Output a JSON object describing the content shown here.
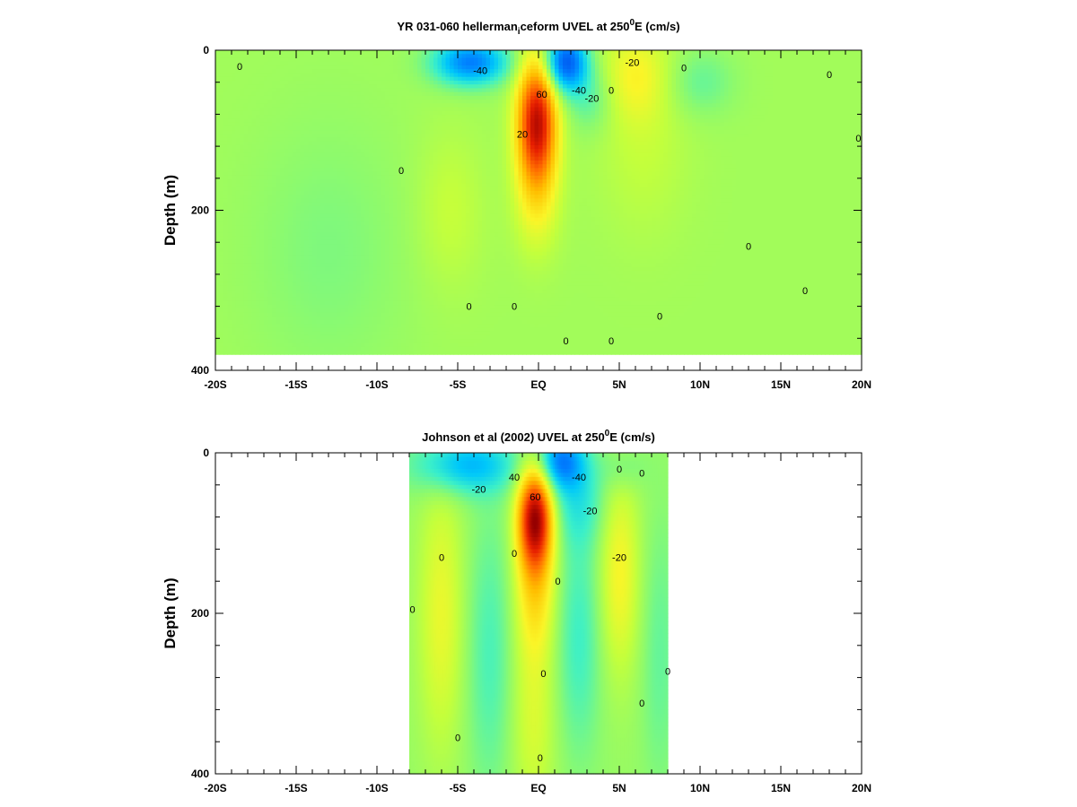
{
  "chart_data": [
    {
      "type": "heatmap",
      "title_main": "YR 031-060 hellerman",
      "title_sub": "i",
      "title_after_sub": "ceform UVEL at 250",
      "title_sup": "0",
      "title_end": "E (cm/s)",
      "ylabel": "Depth (m)",
      "xlabel": "",
      "x_ticks": [
        {
          "value": -20,
          "label": "-20S"
        },
        {
          "value": -15,
          "label": "-15S"
        },
        {
          "value": -10,
          "label": "-10S"
        },
        {
          "value": -5,
          "label": "-5S"
        },
        {
          "value": 0,
          "label": "EQ"
        },
        {
          "value": 5,
          "label": "5N"
        },
        {
          "value": 10,
          "label": "10N"
        },
        {
          "value": 15,
          "label": "15N"
        },
        {
          "value": 20,
          "label": "20N"
        }
      ],
      "y_ticks": [
        {
          "value": 0,
          "label": "0"
        },
        {
          "value": 200,
          "label": "200"
        },
        {
          "value": 400,
          "label": "400"
        }
      ],
      "xlim": [
        -20,
        20
      ],
      "ylim": [
        0,
        400
      ],
      "y_inverted": true,
      "data_region": {
        "x": [
          -20,
          20
        ],
        "depth": [
          0,
          380
        ]
      },
      "units": "cm/s",
      "contour_labels": [
        {
          "text": "0",
          "x": -18.5,
          "depth": 20
        },
        {
          "text": "-40",
          "x": -3.6,
          "depth": 25
        },
        {
          "text": "60",
          "x": 0.2,
          "depth": 55
        },
        {
          "text": "-40",
          "x": 2.5,
          "depth": 50
        },
        {
          "text": "-20",
          "x": 3.3,
          "depth": 60
        },
        {
          "text": "0",
          "x": 4.5,
          "depth": 50
        },
        {
          "text": "-20",
          "x": 5.8,
          "depth": 15
        },
        {
          "text": "0",
          "x": 9.0,
          "depth": 22
        },
        {
          "text": "20",
          "x": -1.0,
          "depth": 105
        },
        {
          "text": "0",
          "x": -8.5,
          "depth": 150
        },
        {
          "text": "0",
          "x": 18.0,
          "depth": 30
        },
        {
          "text": "0",
          "x": 19.8,
          "depth": 110
        },
        {
          "text": "0",
          "x": 13.0,
          "depth": 245
        },
        {
          "text": "0",
          "x": 16.5,
          "depth": 300
        },
        {
          "text": "0",
          "x": -4.3,
          "depth": 320
        },
        {
          "text": "0",
          "x": -1.5,
          "depth": 320
        },
        {
          "text": "0",
          "x": 7.5,
          "depth": 332
        },
        {
          "text": "0",
          "x": 1.7,
          "depth": 363
        },
        {
          "text": "0",
          "x": 4.5,
          "depth": 363
        }
      ]
    },
    {
      "type": "heatmap",
      "title_main": "Johnson et al (2002) UVEL at 250",
      "title_sup": "0",
      "title_end": "E (cm/s)",
      "ylabel": "Depth (m)",
      "xlabel": "",
      "x_ticks": [
        {
          "value": -20,
          "label": "-20S"
        },
        {
          "value": -15,
          "label": "-15S"
        },
        {
          "value": -10,
          "label": "-10S"
        },
        {
          "value": -5,
          "label": "-5S"
        },
        {
          "value": 0,
          "label": "EQ"
        },
        {
          "value": 5,
          "label": "5N"
        },
        {
          "value": 10,
          "label": "10N"
        },
        {
          "value": 15,
          "label": "15N"
        },
        {
          "value": 20,
          "label": "20N"
        }
      ],
      "y_ticks": [
        {
          "value": 0,
          "label": "0"
        },
        {
          "value": 200,
          "label": "200"
        },
        {
          "value": 400,
          "label": "400"
        }
      ],
      "xlim": [
        -20,
        20
      ],
      "ylim": [
        0,
        400
      ],
      "y_inverted": true,
      "data_region": {
        "x": [
          -8,
          8
        ],
        "depth": [
          0,
          400
        ]
      },
      "units": "cm/s",
      "contour_labels": [
        {
          "text": "-20",
          "x": -3.7,
          "depth": 45
        },
        {
          "text": "40",
          "x": -1.5,
          "depth": 30
        },
        {
          "text": "60",
          "x": -0.2,
          "depth": 55
        },
        {
          "text": "-40",
          "x": 2.5,
          "depth": 30
        },
        {
          "text": "-20",
          "x": 3.2,
          "depth": 72
        },
        {
          "text": "0",
          "x": 5.0,
          "depth": 20
        },
        {
          "text": "0",
          "x": 6.4,
          "depth": 25
        },
        {
          "text": "-20",
          "x": 5.0,
          "depth": 130
        },
        {
          "text": "0",
          "x": -1.5,
          "depth": 125
        },
        {
          "text": "0",
          "x": -6.0,
          "depth": 130
        },
        {
          "text": "0",
          "x": 1.2,
          "depth": 160
        },
        {
          "text": "0",
          "x": -7.8,
          "depth": 195
        },
        {
          "text": "0",
          "x": 8.0,
          "depth": 272
        },
        {
          "text": "0",
          "x": 0.3,
          "depth": 275
        },
        {
          "text": "0",
          "x": 6.4,
          "depth": 312
        },
        {
          "text": "0",
          "x": -5.0,
          "depth": 355
        },
        {
          "text": "0",
          "x": 0.1,
          "depth": 380
        }
      ]
    }
  ]
}
